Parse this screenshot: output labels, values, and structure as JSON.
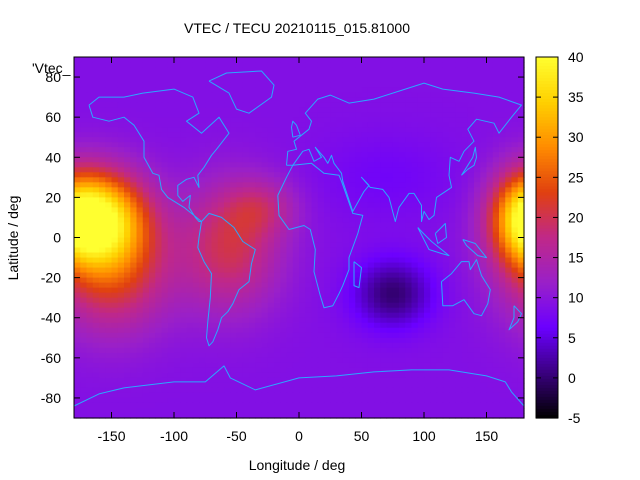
{
  "chart_data": {
    "type": "heatmap",
    "title": "VTEC / TECU 20210115_015.81000",
    "series_key": "'Vtec_",
    "xlabel": "Longitude / deg",
    "ylabel": "Latitude / deg",
    "xlim": [
      -180,
      180
    ],
    "ylim": [
      -90,
      90
    ],
    "xticks": [
      -150,
      -100,
      -50,
      0,
      50,
      100,
      150
    ],
    "yticks": [
      -80,
      -60,
      -40,
      -20,
      0,
      20,
      40,
      60,
      80
    ],
    "colorbar": {
      "min": -5,
      "max": 40,
      "ticks": [
        -5,
        0,
        5,
        10,
        15,
        20,
        25,
        30,
        35,
        40
      ],
      "colormap": [
        "#000000",
        "#3a007f",
        "#6b00ff",
        "#9a20c8",
        "#c02888",
        "#e04010",
        "#ff8c00",
        "#ffd000",
        "#ffff30"
      ]
    },
    "features": [
      {
        "lon": -160,
        "lat": 10,
        "sigma_lon": 26,
        "sigma_lat": 16,
        "amp": 25
      },
      {
        "lon": -150,
        "lat": -15,
        "sigma_lon": 32,
        "sigma_lat": 22,
        "amp": 14
      },
      {
        "lon": -55,
        "lat": -5,
        "sigma_lon": 28,
        "sigma_lat": 22,
        "amp": 11
      },
      {
        "lon": -30,
        "lat": 15,
        "sigma_lon": 20,
        "sigma_lat": 10,
        "amp": 6
      },
      {
        "lon": 178,
        "lat": 10,
        "sigma_lon": 18,
        "sigma_lat": 16,
        "amp": 13
      },
      {
        "lon": 75,
        "lat": -28,
        "sigma_lon": 22,
        "sigma_lat": 12,
        "amp": -9
      },
      {
        "lon": 70,
        "lat": 30,
        "sigma_lon": 40,
        "sigma_lat": 15,
        "amp": -2
      }
    ],
    "background_value": 9
  },
  "colors": {
    "coastline": "#2aa8ff",
    "axis": "#000000"
  }
}
